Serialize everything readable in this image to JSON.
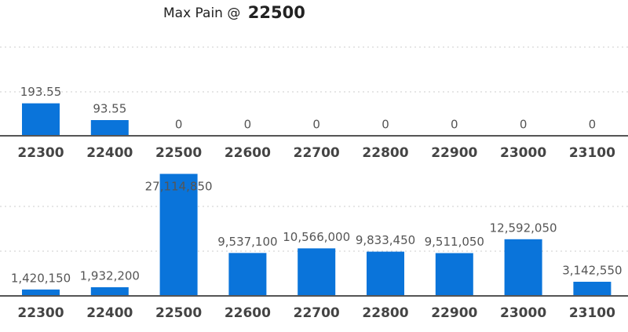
{
  "chart_data": [
    {
      "type": "bar",
      "title": "Max Pain @",
      "title_emphasis": "22500",
      "categories": [
        "22300",
        "22400",
        "22500",
        "22600",
        "22700",
        "22800",
        "22900",
        "23000",
        "23100"
      ],
      "values": [
        193.55,
        93.55,
        0,
        0,
        0,
        0,
        0,
        0,
        0
      ],
      "color": "#0a74da",
      "ylim": [
        0,
        800
      ]
    },
    {
      "type": "bar",
      "categories": [
        "22300",
        "22400",
        "22500",
        "22600",
        "22700",
        "22800",
        "22900",
        "23000",
        "23100"
      ],
      "values": [
        1420150,
        1932200,
        27114850,
        9537100,
        10566000,
        9833450,
        9511050,
        12592050,
        3142550
      ],
      "value_labels": [
        "1,420,150",
        "1,932,200",
        "27,114,850",
        "9,537,100",
        "10,566,000",
        "9,833,450",
        "9,511,050",
        "12,592,050",
        "3,142,550"
      ],
      "color": "#0a74da",
      "ylim": [
        0,
        30000000
      ]
    }
  ]
}
